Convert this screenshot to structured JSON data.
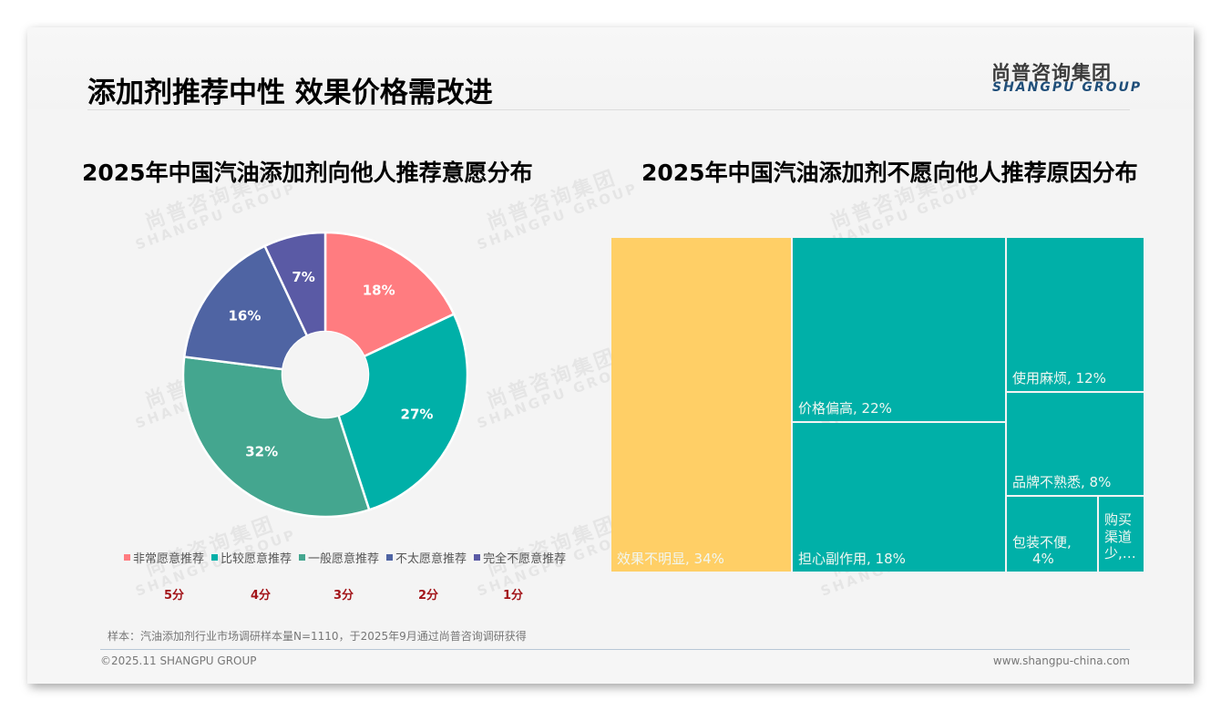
{
  "header": {
    "title": "添加剂推荐中性 效果价格需改进",
    "logo_cn": "尚普咨询集团",
    "logo_en": "SHANGPU GROUP"
  },
  "watermark": {
    "cn": "尚普咨询集团",
    "en": "SHANGPU GROUP"
  },
  "left_chart": {
    "title": "2025年中国汽油添加剂向他人推荐意愿分布",
    "slices": [
      {
        "label": "非常愿意推荐",
        "value": 18,
        "display": "18%",
        "color": "#ff7c80",
        "score": "5分"
      },
      {
        "label": "比较愿意推荐",
        "value": 27,
        "display": "27%",
        "color": "#00b0a8",
        "score": "4分"
      },
      {
        "label": "一般愿意推荐",
        "value": 32,
        "display": "32%",
        "color": "#44a68f",
        "score": "3分"
      },
      {
        "label": "不太愿意推荐",
        "value": 16,
        "display": "16%",
        "color": "#4f64a3",
        "score": "2分"
      },
      {
        "label": "完全不愿意推荐",
        "value": 7,
        "display": "7%",
        "color": "#5a5aa5",
        "score": "1分"
      }
    ]
  },
  "right_chart": {
    "title": "2025年中国汽油添加剂不愿向他人推荐原因分布",
    "tiles": [
      {
        "label": "效果不明显, 34%",
        "name": "效果不明显",
        "value": 34,
        "color": "#ffcf66"
      },
      {
        "label": "价格偏高, 22%",
        "name": "价格偏高",
        "value": 22,
        "color": "#00b0a8"
      },
      {
        "label": "担心副作用, 18%",
        "name": "担心副作用",
        "value": 18,
        "color": "#00b0a8"
      },
      {
        "label": "使用麻烦, 12%",
        "name": "使用麻烦",
        "value": 12,
        "color": "#00b0a8"
      },
      {
        "label": "品牌不熟悉, 8%",
        "name": "品牌不熟悉",
        "value": 8,
        "color": "#00b0a8"
      },
      {
        "label": "包装不便, 4%",
        "name": "包装不便",
        "value": 4,
        "color": "#00b0a8"
      },
      {
        "label": "购买渠道少,…",
        "name": "购买渠道少",
        "value": 2,
        "color": "#00b0a8"
      }
    ]
  },
  "chart_data": [
    {
      "type": "pie",
      "title": "2025年中国汽油添加剂向他人推荐意愿分布",
      "categories": [
        "非常愿意推荐",
        "比较愿意推荐",
        "一般愿意推荐",
        "不太愿意推荐",
        "完全不愿意推荐"
      ],
      "values": [
        18,
        27,
        32,
        16,
        7
      ],
      "unit": "%",
      "donut": true,
      "legend_position": "bottom",
      "annotations": [
        "5分",
        "4分",
        "3分",
        "2分",
        "1分"
      ]
    },
    {
      "type": "treemap",
      "title": "2025年中国汽油添加剂不愿向他人推荐原因分布",
      "categories": [
        "效果不明显",
        "价格偏高",
        "担心副作用",
        "使用麻烦",
        "品牌不熟悉",
        "包装不便",
        "购买渠道少"
      ],
      "values": [
        34,
        22,
        18,
        12,
        8,
        4,
        2
      ],
      "unit": "%"
    }
  ],
  "footer": {
    "note": "样本：汽油添加剂行业市场调研样本量N=1110，于2025年9月通过尚普咨询调研获得",
    "copyright": "©2025.11 SHANGPU GROUP",
    "website": "www.shangpu-china.com"
  }
}
